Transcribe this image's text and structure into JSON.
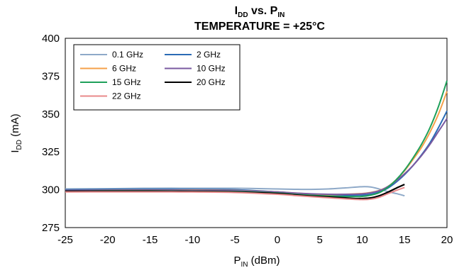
{
  "chart_data": {
    "type": "line",
    "title_main": "I",
    "title_main_sub": "DD",
    "title_mid": " vs. P",
    "title_mid_sub": "IN",
    "title_line2": "TEMPERATURE = +25°C",
    "xlabel_main": "P",
    "xlabel_sub": "IN",
    "xlabel_unit": " (dBm)",
    "ylabel_main": "I",
    "ylabel_sub": "DD",
    "ylabel_unit": " (mA)",
    "xlim": [
      -25,
      20
    ],
    "ylim": [
      275,
      400
    ],
    "xticks": [
      -25,
      -20,
      -15,
      -10,
      -5,
      0,
      5,
      10,
      15,
      20
    ],
    "yticks": [
      275,
      300,
      325,
      350,
      375,
      400
    ],
    "grid": false,
    "legend_position": "top-left",
    "series": [
      {
        "name": "0.1 GHz",
        "color": "#8ea9c8",
        "x": [
          -25,
          -20,
          -15,
          -10,
          -5,
          0,
          2,
          4,
          6,
          8,
          10,
          11,
          12,
          13,
          14,
          15
        ],
        "y": [
          300.5,
          300.7,
          301,
          301,
          301,
          300.5,
          300.3,
          300.2,
          300.5,
          301.2,
          302,
          301.8,
          300.5,
          298.8,
          297.5,
          296
        ]
      },
      {
        "name": "2 GHz",
        "color": "#2a6bb5",
        "x": [
          -25,
          -20,
          -15,
          -10,
          -5,
          0,
          2,
          4,
          6,
          8,
          10,
          11,
          12,
          13,
          14,
          15,
          16,
          17,
          18,
          19,
          20
        ],
        "y": [
          300,
          300.2,
          300.3,
          300.2,
          300,
          298.5,
          297.5,
          296.8,
          296.3,
          296.2,
          296.5,
          297,
          298.5,
          301,
          305,
          310,
          316,
          323,
          331,
          341,
          352
        ]
      },
      {
        "name": "6 GHz",
        "color": "#f5a04a",
        "x": [
          -25,
          -20,
          -15,
          -10,
          -5,
          0,
          2,
          4,
          6,
          8,
          10,
          11,
          12,
          13,
          14,
          15,
          16,
          17,
          18,
          19,
          20
        ],
        "y": [
          299.5,
          299.7,
          299.8,
          299.8,
          299.5,
          298.5,
          297.8,
          297.2,
          296.8,
          297,
          297.5,
          298.2,
          299.5,
          302,
          306.5,
          312.5,
          320,
          328,
          338,
          350,
          365
        ]
      },
      {
        "name": "10 GHz",
        "color": "#7a5aa0",
        "x": [
          -25,
          -20,
          -15,
          -10,
          -5,
          0,
          2,
          4,
          6,
          8,
          10,
          11,
          12,
          13,
          14,
          15,
          16,
          17,
          18,
          19,
          20
        ],
        "y": [
          299.5,
          299.6,
          299.7,
          299.6,
          299.4,
          298.5,
          297.8,
          297.3,
          297,
          297,
          297.3,
          298,
          299.3,
          302,
          305.8,
          310.5,
          316,
          322.5,
          330,
          338.5,
          347
        ]
      },
      {
        "name": "15 GHz",
        "color": "#1fa05a",
        "x": [
          -25,
          -20,
          -15,
          -10,
          -5,
          0,
          2,
          4,
          6,
          8,
          10,
          11,
          12,
          13,
          14,
          15,
          16,
          17,
          18,
          19,
          20
        ],
        "y": [
          299,
          299.2,
          299.2,
          299,
          298.8,
          297.8,
          297,
          296.3,
          295.8,
          295.5,
          295.6,
          296.4,
          298,
          301.5,
          306.5,
          313,
          321,
          330,
          341,
          355,
          372
        ]
      },
      {
        "name": "20 GHz",
        "color": "#000000",
        "x": [
          -25,
          -20,
          -15,
          -10,
          -5,
          0,
          2,
          4,
          6,
          8,
          9,
          10,
          11,
          12,
          13,
          14,
          15
        ],
        "y": [
          299,
          299,
          299,
          298.8,
          298.5,
          297.5,
          296.6,
          295.8,
          295.2,
          294.6,
          294.2,
          294.2,
          294.6,
          296,
          298.3,
          301,
          303.5
        ]
      },
      {
        "name": "22 GHz",
        "color": "#e8888a",
        "x": [
          -25,
          -20,
          -15,
          -10,
          -5,
          0,
          2,
          4,
          6,
          8,
          10,
          11,
          12,
          13,
          14,
          15
        ],
        "y": [
          298.5,
          298.6,
          298.6,
          298.5,
          298.2,
          297,
          296.2,
          295.4,
          294.7,
          294,
          293.5,
          293.8,
          295,
          297.3,
          299.5,
          301.5
        ]
      }
    ]
  }
}
